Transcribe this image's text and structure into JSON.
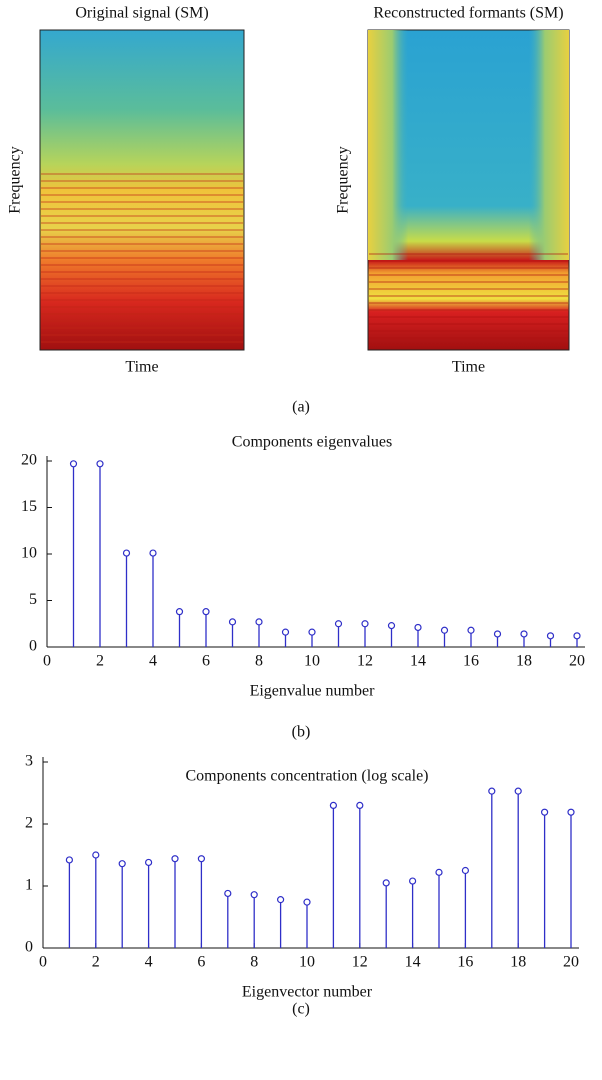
{
  "chart_data": [
    {
      "type": "image",
      "title": "Original signal (SM)",
      "xlabel": "Time",
      "ylabel": "Frequency"
    },
    {
      "type": "image",
      "title": "Reconstructed formants (SM)",
      "xlabel": "Time",
      "ylabel": "Frequency"
    },
    {
      "type": "stem",
      "title": "Components eigenvalues",
      "xlabel": "Eigenvalue number",
      "color": "#2f2fc8",
      "x": [
        1,
        2,
        3,
        4,
        5,
        6,
        7,
        8,
        9,
        10,
        11,
        12,
        13,
        14,
        15,
        16,
        17,
        18,
        19,
        20
      ],
      "values": [
        19.7,
        19.7,
        10.1,
        10.1,
        3.8,
        3.8,
        2.7,
        2.7,
        1.6,
        1.6,
        2.5,
        2.5,
        2.3,
        2.1,
        1.8,
        1.8,
        1.4,
        1.4,
        1.2,
        1.2
      ],
      "xlim": [
        0,
        20
      ],
      "xticks": [
        0,
        2,
        4,
        6,
        8,
        10,
        12,
        14,
        16,
        18,
        20
      ],
      "ylim": [
        0,
        20
      ],
      "yticks": [
        0,
        5,
        10,
        15,
        20
      ]
    },
    {
      "type": "stem",
      "title": "Components concentration (log scale)",
      "xlabel": "Eigenvector number",
      "color": "#2f2fc8",
      "x": [
        1,
        2,
        3,
        4,
        5,
        6,
        7,
        8,
        9,
        10,
        11,
        12,
        13,
        14,
        15,
        16,
        17,
        18,
        19,
        20
      ],
      "values": [
        1.42,
        1.5,
        1.36,
        1.38,
        1.44,
        1.44,
        0.88,
        0.86,
        0.78,
        0.74,
        2.3,
        2.3,
        1.05,
        1.08,
        1.22,
        1.25,
        2.53,
        2.53,
        2.19,
        2.19
      ],
      "xlim": [
        0,
        20
      ],
      "xticks": [
        0,
        2,
        4,
        6,
        8,
        10,
        12,
        14,
        16,
        18,
        20
      ],
      "ylim": [
        0,
        3
      ],
      "yticks": [
        0,
        1,
        2,
        3
      ]
    }
  ],
  "captions": [
    "(a)",
    "(b)",
    "(c)"
  ]
}
